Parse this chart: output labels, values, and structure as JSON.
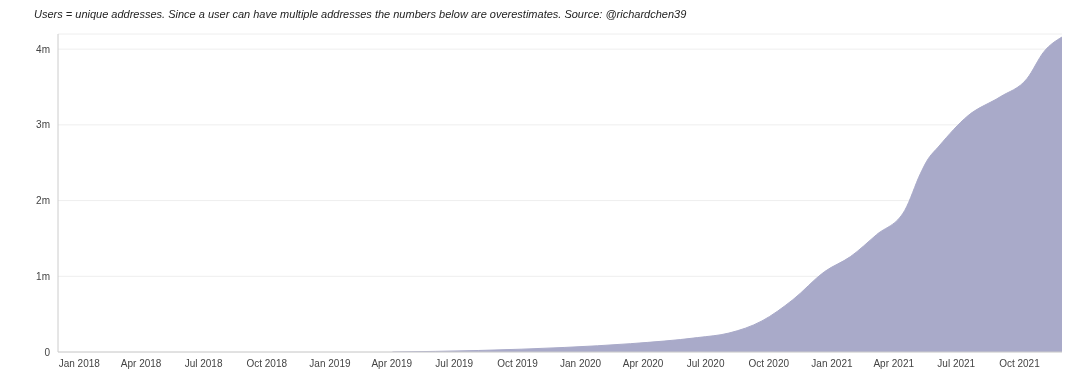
{
  "chart_data": {
    "type": "area",
    "subtitle": "Users = unique addresses. Since a user can have multiple addresses the numbers below are overestimates. Source: @richardchen39",
    "x": [
      "2019-04-02",
      "2019-08-05",
      "2019-12-08",
      "2020-03-14",
      "2020-06-19",
      "2020-08-04",
      "2020-09-21",
      "2020-11-05",
      "2020-12-21",
      "2021-01-28",
      "2021-03-07",
      "2021-04-17",
      "2021-05-10",
      "2021-05-19",
      "2021-06-06",
      "2021-07-18",
      "2021-09-03",
      "2021-10-12",
      "2021-11-06",
      "2021-12-02"
    ],
    "values": [
      0,
      20000,
      60000,
      110000,
      190000,
      250000,
      410000,
      690000,
      1060000,
      1260000,
      1550000,
      1870000,
      2360000,
      2520000,
      2720000,
      3120000,
      3370000,
      3610000,
      3970000,
      4160000
    ],
    "color": "#a9aac9",
    "xlim": [
      "2017-12-01",
      "2021-12-02"
    ],
    "xticks": [
      {
        "value": "2018-01-01",
        "label": "Jan 2018"
      },
      {
        "value": "2018-04-01",
        "label": "Apr 2018"
      },
      {
        "value": "2018-07-01",
        "label": "Jul 2018"
      },
      {
        "value": "2018-10-01",
        "label": "Oct 2018"
      },
      {
        "value": "2019-01-01",
        "label": "Jan 2019"
      },
      {
        "value": "2019-04-01",
        "label": "Apr 2019"
      },
      {
        "value": "2019-07-01",
        "label": "Jul 2019"
      },
      {
        "value": "2019-10-01",
        "label": "Oct 2019"
      },
      {
        "value": "2020-01-01",
        "label": "Jan 2020"
      },
      {
        "value": "2020-04-01",
        "label": "Apr 2020"
      },
      {
        "value": "2020-07-01",
        "label": "Jul 2020"
      },
      {
        "value": "2020-10-01",
        "label": "Oct 2020"
      },
      {
        "value": "2021-01-01",
        "label": "Jan 2021"
      },
      {
        "value": "2021-04-01",
        "label": "Apr 2021"
      },
      {
        "value": "2021-07-01",
        "label": "Jul 2021"
      },
      {
        "value": "2021-10-01",
        "label": "Oct 2021"
      }
    ],
    "ylim": [
      0,
      4200000
    ],
    "yticks": [
      0,
      {
        "value": 1000000,
        "label": "1m"
      },
      {
        "value": 2000000,
        "label": "2m"
      },
      {
        "value": 3000000,
        "label": "3m"
      },
      {
        "value": 4000000,
        "label": "4m"
      }
    ],
    "grid": "y"
  }
}
